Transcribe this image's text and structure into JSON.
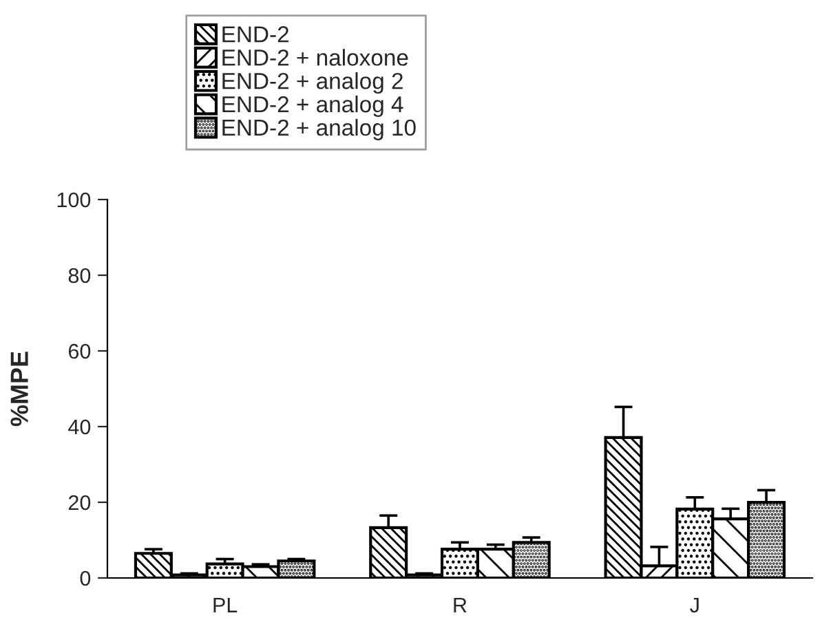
{
  "chart_data": {
    "type": "bar",
    "ylabel": "%MPE",
    "categories": [
      "PL",
      "R",
      "J"
    ],
    "series": [
      {
        "name": "END-2",
        "color": "#000000",
        "values": [
          6.5,
          13.3,
          37.1
        ],
        "errors": [
          [
            6.5,
            7.6
          ],
          [
            13.3,
            16.5
          ],
          [
            37.1,
            45.2
          ]
        ]
      },
      {
        "name": "END-2 + naloxone",
        "color": "#000000",
        "values": [
          0.8,
          0.8,
          3.2
        ],
        "errors": [
          [
            0.8,
            1.2
          ],
          [
            0.8,
            1.2
          ],
          [
            3.2,
            8.2
          ]
        ]
      },
      {
        "name": "END-2 + analog 2",
        "color": "#000000",
        "values": [
          3.7,
          7.6,
          18.2
        ],
        "errors": [
          [
            3.7,
            5.0
          ],
          [
            7.6,
            9.4
          ],
          [
            18.2,
            21.3
          ]
        ]
      },
      {
        "name": "END-2 + analog 4",
        "color": "#000000",
        "values": [
          3.0,
          7.6,
          15.6
        ],
        "errors": [
          [
            3.0,
            3.6
          ],
          [
            7.6,
            8.8
          ],
          [
            15.6,
            18.3
          ]
        ]
      },
      {
        "name": "END-2 + analog 10",
        "color": "#000000",
        "values": [
          4.5,
          9.4,
          20.0
        ],
        "errors": [
          [
            4.5,
            5.0
          ],
          [
            9.4,
            10.7
          ],
          [
            20.0,
            23.2
          ]
        ]
      }
    ],
    "ylim": [
      0,
      100
    ],
    "yticks": [
      0,
      20,
      40,
      60,
      80,
      100
    ],
    "grid": false,
    "legend": "top"
  }
}
